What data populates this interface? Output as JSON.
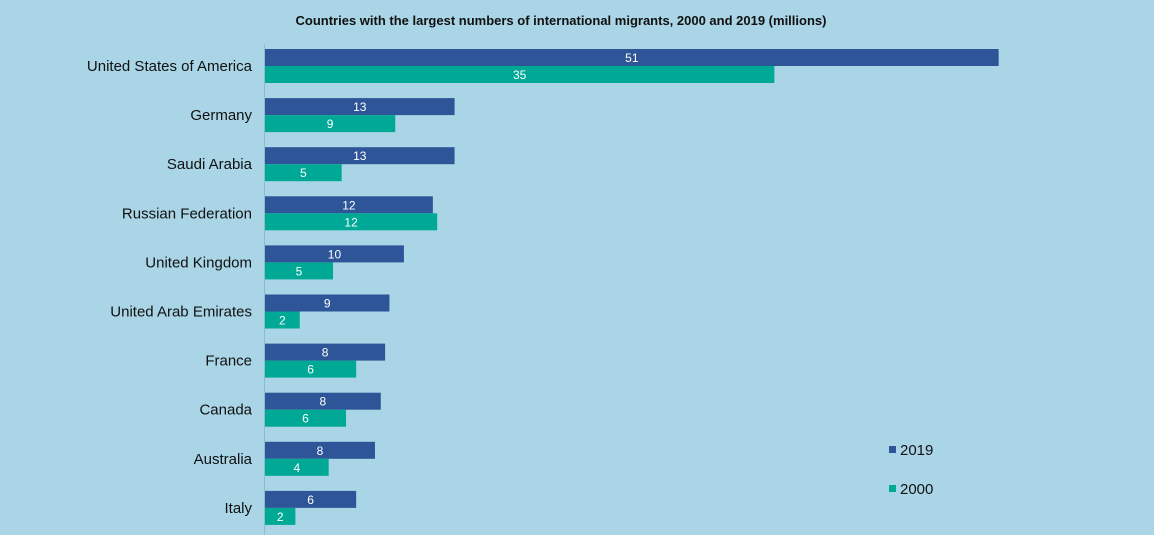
{
  "chart_data": {
    "type": "bar",
    "orientation": "horizontal",
    "title": "Countries with the largest numbers of international migrants, 2000 and 2019 (millions)",
    "categories": [
      "United States of America",
      "Germany",
      "Saudi Arabia",
      "Russian Federation",
      "United Kingdom",
      "United Arab Emirates",
      "France",
      "Canada",
      "Australia",
      "Italy"
    ],
    "series": [
      {
        "name": "2019",
        "color": "#2e5597",
        "values": [
          50.7,
          13.1,
          13.1,
          11.6,
          9.6,
          8.6,
          8.3,
          8.0,
          7.6,
          6.3
        ],
        "labels": [
          "51",
          "13",
          "13",
          "12",
          "10",
          "9",
          "8",
          "8",
          "8",
          "6"
        ]
      },
      {
        "name": "2000",
        "color": "#00a896",
        "values": [
          35.2,
          9.0,
          5.3,
          11.9,
          4.7,
          2.4,
          6.3,
          5.6,
          4.4,
          2.1
        ],
        "labels": [
          "35",
          "9",
          "5",
          "12",
          "5",
          "2",
          "6",
          "6",
          "4",
          "2"
        ]
      }
    ],
    "xlim": [
      0,
      60
    ],
    "grid": false,
    "legend_position": "bottom-right",
    "background_color": "#a9d5e6"
  }
}
